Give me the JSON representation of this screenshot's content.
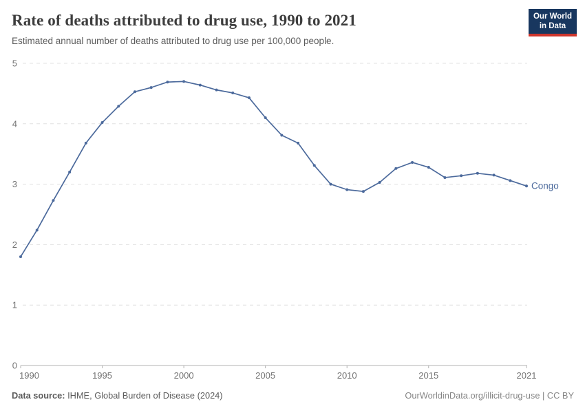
{
  "header": {
    "title": "Rate of deaths attributed to drug use, 1990 to 2021",
    "subtitle": "Estimated annual number of deaths attributed to drug use per 100,000 people.",
    "logo": {
      "line1": "Our World",
      "line2": "in Data"
    }
  },
  "chart_data": {
    "type": "line",
    "title": "Rate of deaths attributed to drug use, 1990 to 2021",
    "subtitle": "Estimated annual number of deaths attributed to drug use per 100,000 people.",
    "xlabel": "",
    "ylabel": "",
    "xlim": [
      1990,
      2021
    ],
    "ylim": [
      0,
      5
    ],
    "x_ticks": [
      1990,
      1995,
      2000,
      2005,
      2010,
      2015,
      2021
    ],
    "y_ticks": [
      0,
      1,
      2,
      3,
      4,
      5
    ],
    "grid": "horizontal-dashed",
    "legend_position": "end-of-line-label",
    "series": [
      {
        "name": "Congo",
        "color": "#4C6A9C",
        "x": [
          1990,
          1991,
          1992,
          1993,
          1994,
          1995,
          1996,
          1997,
          1998,
          1999,
          2000,
          2001,
          2002,
          2003,
          2004,
          2005,
          2006,
          2007,
          2008,
          2009,
          2010,
          2011,
          2012,
          2013,
          2014,
          2015,
          2016,
          2017,
          2018,
          2019,
          2020,
          2021
        ],
        "values": [
          1.8,
          2.24,
          2.73,
          3.2,
          3.68,
          4.02,
          4.29,
          4.53,
          4.6,
          4.69,
          4.7,
          4.64,
          4.56,
          4.51,
          4.43,
          4.1,
          3.81,
          3.68,
          3.31,
          3.0,
          2.91,
          2.88,
          3.03,
          3.26,
          3.36,
          3.28,
          3.11,
          3.14,
          3.18,
          3.15,
          3.06,
          2.97
        ]
      }
    ],
    "entity_label": "Congo"
  },
  "footer": {
    "source_label": "Data source:",
    "source_text": " IHME, Global Burden of Disease (2024)",
    "credit": "OurWorldinData.org/illicit-drug-use | CC BY"
  },
  "colors": {
    "line": "#4C6A9C",
    "gridline": "#e0e0e0",
    "axis": "#b3b3b3",
    "tick_label": "#737373",
    "logo_bg": "#18375f",
    "logo_red": "#ce352c"
  }
}
